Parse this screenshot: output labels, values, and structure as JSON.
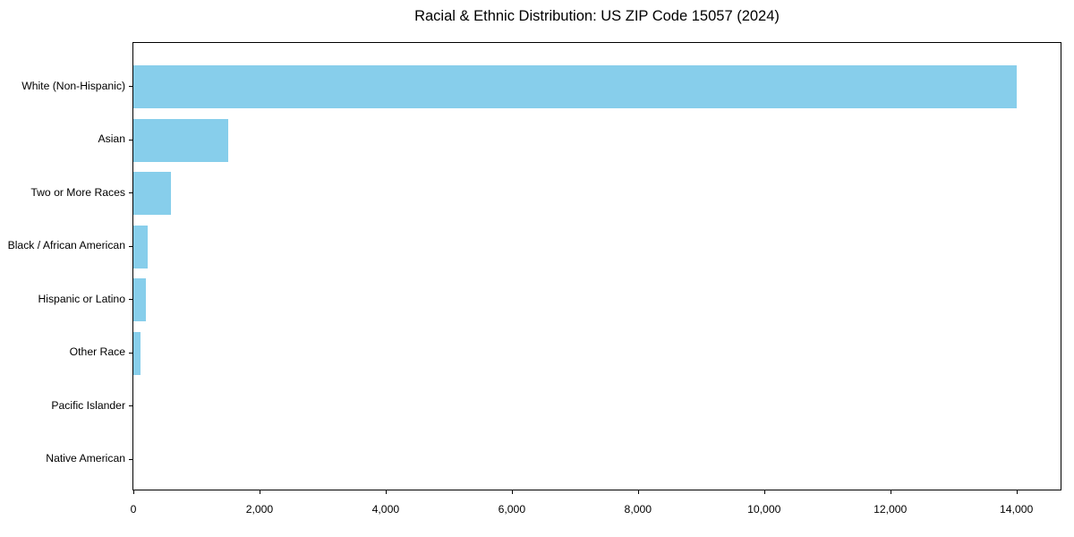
{
  "chart_data": {
    "type": "bar",
    "orientation": "horizontal",
    "title": "Racial & Ethnic Distribution: US ZIP Code 15057 (2024)",
    "categories": [
      "White (Non-Hispanic)",
      "Asian",
      "Two or More Races",
      "Black / African American",
      "Hispanic or Latino",
      "Other Race",
      "Pacific Islander",
      "Native American"
    ],
    "values": [
      14000,
      1500,
      600,
      230,
      200,
      110,
      0,
      0
    ],
    "xlabel": "",
    "ylabel": "",
    "xlim": [
      0,
      14700
    ],
    "xticks": [
      0,
      2000,
      4000,
      6000,
      8000,
      10000,
      12000,
      14000
    ],
    "xtick_labels": [
      "0",
      "2,000",
      "4,000",
      "6,000",
      "8,000",
      "10,000",
      "12,000",
      "14,000"
    ],
    "bar_color": "#87CEEB",
    "axis_color": "#000000",
    "text_color": "#000000",
    "background_color": "#FFFFFF",
    "grid": false,
    "legend": false
  }
}
